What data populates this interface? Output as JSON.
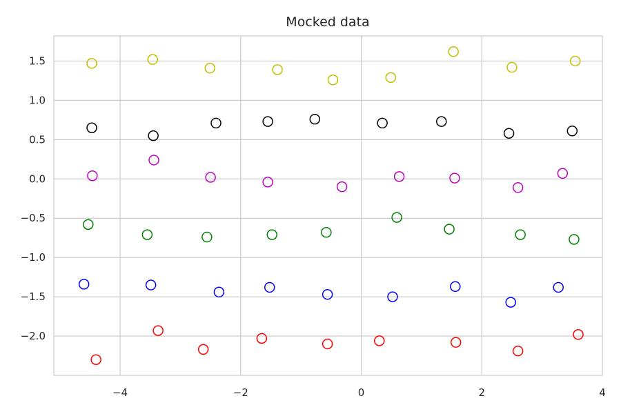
{
  "chart_data": {
    "type": "scatter",
    "title": "Mocked data",
    "xlabel": "",
    "ylabel": "",
    "xlim": [
      -5.1,
      4.0
    ],
    "ylim": [
      -2.5,
      1.82
    ],
    "xticks": [
      -4,
      -2,
      0,
      2,
      4
    ],
    "xtick_labels": [
      "−4",
      "−2",
      "0",
      "2",
      "4"
    ],
    "yticks": [
      1.5,
      1.0,
      0.5,
      0.0,
      -0.5,
      -1.0,
      -1.5,
      -2.0
    ],
    "ytick_labels": [
      "1.5",
      "1.0",
      "0.5",
      "0.0",
      "−0.5",
      "−1.0",
      "−1.5",
      "−2.0"
    ],
    "grid": true,
    "marker": "hollow circle",
    "series": [
      {
        "color": "#bfbf00",
        "points": [
          [
            -4.47,
            1.47
          ],
          [
            -3.46,
            1.52
          ],
          [
            -2.51,
            1.41
          ],
          [
            -1.39,
            1.39
          ],
          [
            -0.47,
            1.26
          ],
          [
            0.49,
            1.29
          ],
          [
            1.53,
            1.62
          ],
          [
            2.5,
            1.42
          ],
          [
            3.55,
            1.5
          ]
        ]
      },
      {
        "color": "#000000",
        "points": [
          [
            -4.47,
            0.65
          ],
          [
            -3.45,
            0.55
          ],
          [
            -2.41,
            0.71
          ],
          [
            -1.55,
            0.73
          ],
          [
            -0.77,
            0.76
          ],
          [
            0.35,
            0.71
          ],
          [
            1.33,
            0.73
          ],
          [
            2.45,
            0.58
          ],
          [
            3.5,
            0.61
          ]
        ]
      },
      {
        "color": "#bf00bf",
        "points": [
          [
            -4.46,
            0.04
          ],
          [
            -3.44,
            0.24
          ],
          [
            -2.5,
            0.02
          ],
          [
            -1.55,
            -0.04
          ],
          [
            -0.32,
            -0.1
          ],
          [
            0.63,
            0.03
          ],
          [
            1.55,
            0.01
          ],
          [
            2.6,
            -0.11
          ],
          [
            3.34,
            0.07
          ]
        ]
      },
      {
        "color": "#008000",
        "points": [
          [
            -4.53,
            -0.58
          ],
          [
            -3.55,
            -0.71
          ],
          [
            -2.56,
            -0.74
          ],
          [
            -1.48,
            -0.71
          ],
          [
            -0.58,
            -0.68
          ],
          [
            0.59,
            -0.49
          ],
          [
            1.46,
            -0.64
          ],
          [
            2.64,
            -0.71
          ],
          [
            3.53,
            -0.77
          ]
        ]
      },
      {
        "color": "#0000ff",
        "points": [
          [
            -4.6,
            -1.34
          ],
          [
            -3.49,
            -1.35
          ],
          [
            -2.36,
            -1.44
          ],
          [
            -1.52,
            -1.38
          ],
          [
            -0.56,
            -1.47
          ],
          [
            0.52,
            -1.5
          ],
          [
            1.56,
            -1.37
          ],
          [
            2.48,
            -1.57
          ],
          [
            3.27,
            -1.38
          ]
        ]
      },
      {
        "color": "#ff0000",
        "points": [
          [
            -4.4,
            -2.3
          ],
          [
            -3.37,
            -1.93
          ],
          [
            -2.62,
            -2.17
          ],
          [
            -1.65,
            -2.03
          ],
          [
            -0.56,
            -2.1
          ],
          [
            0.3,
            -2.06
          ],
          [
            1.57,
            -2.08
          ],
          [
            2.6,
            -2.19
          ],
          [
            3.6,
            -1.98
          ]
        ]
      }
    ]
  }
}
